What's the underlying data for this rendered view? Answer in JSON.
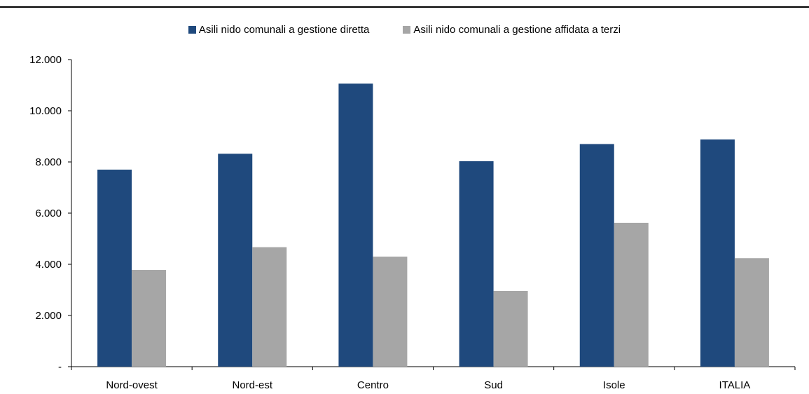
{
  "chart_data": {
    "type": "bar",
    "categories": [
      "Nord-ovest",
      "Nord-est",
      "Centro",
      "Sud",
      "Isole",
      "ITALIA"
    ],
    "series": [
      {
        "name": "Asili nido comunali a gestione diretta",
        "values": [
          7700,
          8320,
          11060,
          8030,
          8700,
          8880
        ],
        "color": "#1f497d"
      },
      {
        "name": "Asili nido comunali a gestione affidata a terzi",
        "values": [
          3780,
          4670,
          4300,
          2960,
          5620,
          4240
        ],
        "color": "#a6a6a6"
      }
    ],
    "yticks": [
      "-",
      "2.000",
      "4.000",
      "6.000",
      "8.000",
      "10.000",
      "12.000"
    ],
    "ylim": [
      0,
      12000
    ],
    "grid": false,
    "legend": "top-center"
  }
}
